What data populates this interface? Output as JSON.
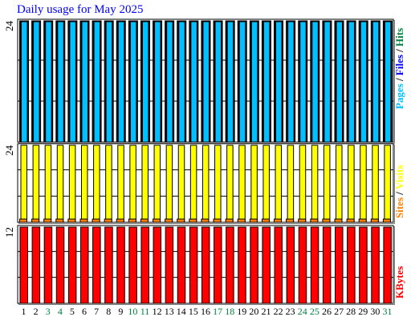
{
  "title": "Daily usage for May 2025",
  "colors": {
    "hits": "#008040",
    "files": "#0000ff",
    "pages": "#00c0ff",
    "visits": "#ffff00",
    "sites": "#ff8000",
    "kbytes": "#ff0000",
    "weekend_label": "#008040",
    "weekday_label": "#000000"
  },
  "chart_data": [
    {
      "type": "bar",
      "panel": "top",
      "ylim": [
        0,
        24
      ],
      "y_tick_label": "24",
      "x": [
        "1",
        "2",
        "3",
        "4",
        "5",
        "6",
        "7",
        "8",
        "9",
        "10",
        "11",
        "12",
        "13",
        "14",
        "15",
        "16",
        "17",
        "18",
        "19",
        "20",
        "21",
        "22",
        "23",
        "24",
        "25",
        "26",
        "27",
        "28",
        "29",
        "30",
        "31"
      ],
      "weekend_days": [
        "3",
        "4",
        "10",
        "11",
        "17",
        "18",
        "24",
        "25",
        "31"
      ],
      "series": [
        {
          "name": "Hits",
          "values": [
            24,
            24,
            24,
            24,
            24,
            24,
            24,
            24,
            24,
            24,
            24,
            24,
            24,
            24,
            24,
            24,
            24,
            24,
            24,
            24,
            24,
            24,
            24,
            24,
            24,
            24,
            24,
            24,
            24,
            24,
            24
          ]
        },
        {
          "name": "Files",
          "values": [
            24,
            24,
            24,
            24,
            24,
            24,
            24,
            24,
            24,
            24,
            24,
            24,
            24,
            24,
            24,
            24,
            24,
            24,
            24,
            24,
            24,
            24,
            24,
            24,
            24,
            24,
            24,
            24,
            24,
            24,
            24
          ]
        },
        {
          "name": "Pages",
          "values": [
            24,
            24,
            24,
            24,
            24,
            24,
            24,
            24,
            24,
            24,
            24,
            24,
            24,
            24,
            24,
            24,
            24,
            24,
            24,
            24,
            24,
            24,
            24,
            24,
            24,
            24,
            24,
            24,
            24,
            24,
            24
          ]
        }
      ],
      "legend": [
        "Pages",
        "/",
        "Files",
        "/",
        "Hits"
      ]
    },
    {
      "type": "bar",
      "panel": "middle",
      "ylim": [
        0,
        24
      ],
      "y_tick_label": "24",
      "x": [
        "1",
        "2",
        "3",
        "4",
        "5",
        "6",
        "7",
        "8",
        "9",
        "10",
        "11",
        "12",
        "13",
        "14",
        "15",
        "16",
        "17",
        "18",
        "19",
        "20",
        "21",
        "22",
        "23",
        "24",
        "25",
        "26",
        "27",
        "28",
        "29",
        "30",
        "31"
      ],
      "series": [
        {
          "name": "Visits",
          "values": [
            24,
            24,
            24,
            24,
            24,
            24,
            24,
            24,
            24,
            24,
            24,
            24,
            24,
            24,
            24,
            24,
            24,
            24,
            24,
            24,
            24,
            24,
            24,
            24,
            24,
            24,
            24,
            24,
            24,
            24,
            24
          ]
        },
        {
          "name": "Sites",
          "values": [
            1,
            1,
            1,
            1,
            1,
            1,
            1,
            1,
            1,
            1,
            1,
            1,
            1,
            1,
            1,
            1,
            1,
            1,
            1,
            1,
            1,
            1,
            1,
            1,
            1,
            1,
            1,
            1,
            1,
            1,
            1
          ]
        }
      ],
      "legend": [
        "Sites",
        "/",
        "Visits"
      ]
    },
    {
      "type": "bar",
      "panel": "bottom",
      "ylim": [
        0,
        12
      ],
      "y_tick_label": "12",
      "x": [
        "1",
        "2",
        "3",
        "4",
        "5",
        "6",
        "7",
        "8",
        "9",
        "10",
        "11",
        "12",
        "13",
        "14",
        "15",
        "16",
        "17",
        "18",
        "19",
        "20",
        "21",
        "22",
        "23",
        "24",
        "25",
        "26",
        "27",
        "28",
        "29",
        "30",
        "31"
      ],
      "series": [
        {
          "name": "KBytes",
          "values": [
            12,
            12,
            12,
            12,
            12,
            12,
            12,
            12,
            12,
            12,
            12,
            12,
            12,
            12,
            12,
            12,
            12,
            12,
            12,
            12,
            12,
            12,
            12,
            12,
            12,
            12,
            12,
            12,
            12,
            12,
            12
          ]
        }
      ],
      "legend": [
        "KBytes"
      ]
    }
  ]
}
